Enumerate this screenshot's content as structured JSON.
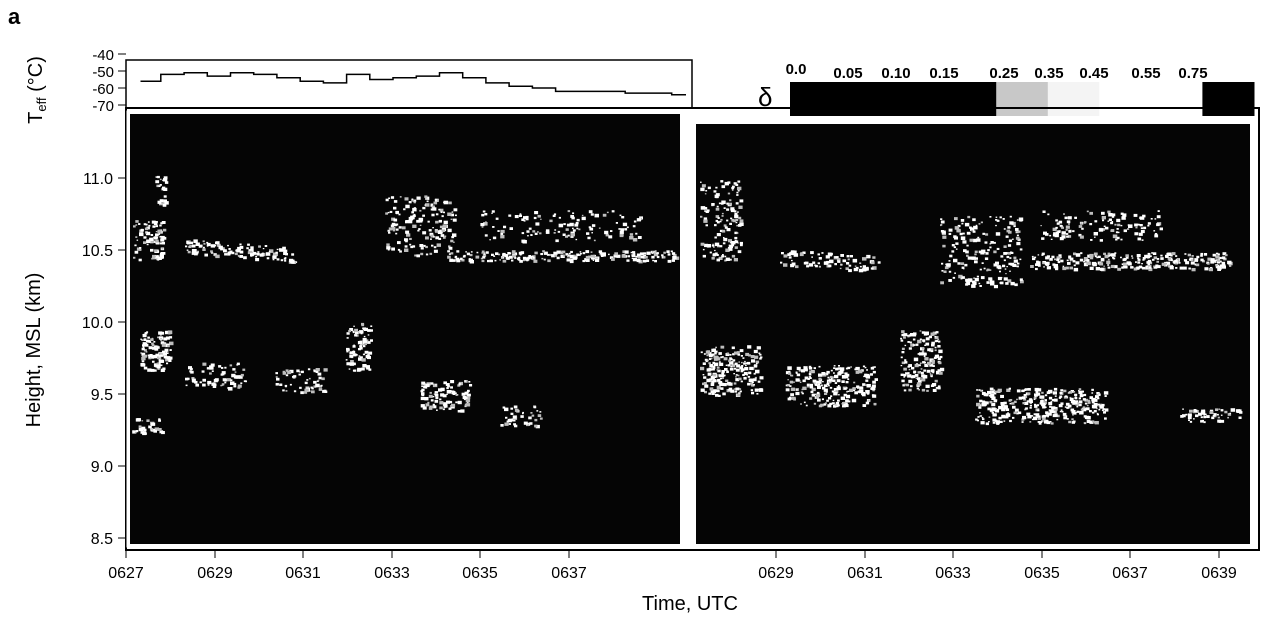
{
  "panel_label": "a",
  "chart_data": [
    {
      "type": "line",
      "ylabel": "T_eff (°C)",
      "ylabel_main": "T",
      "ylabel_sub": "eff",
      "ylabel_unit": " (°C)",
      "yticks": [
        "-40",
        "-50",
        "-60",
        "-70"
      ],
      "ylim": [
        -70,
        -40
      ],
      "xlim": [
        6.45,
        6.645
      ],
      "series": [
        {
          "x": [
            6.455,
            6.462,
            6.47,
            6.478,
            6.486,
            6.494,
            6.502,
            6.51,
            6.518,
            6.526,
            6.534,
            6.542,
            6.55,
            6.558,
            6.566,
            6.574,
            6.582,
            6.59,
            6.598,
            6.606,
            6.614,
            6.622,
            6.63,
            6.638
          ],
          "y": [
            -56,
            -52,
            -51,
            -53,
            -51,
            -52,
            -54,
            -56,
            -57,
            -52,
            -55,
            -54,
            -53,
            -51,
            -54,
            -57,
            -59,
            -60,
            -62,
            -62,
            -62,
            -63,
            -63,
            -64
          ]
        }
      ]
    },
    {
      "type": "heatmap",
      "title": "",
      "xlabel": "Time, UTC",
      "ylabel": "Height, MSL  (km)",
      "xticks": [
        "0627",
        "0629",
        "0631",
        "0633",
        "0635",
        "0637"
      ],
      "yticks": [
        "8.5",
        "9.0",
        "9.5",
        "10.0",
        "10.5",
        "11.0"
      ],
      "xlim": [
        "0627",
        "0639"
      ],
      "ylim": [
        8.5,
        11.5
      ]
    },
    {
      "type": "heatmap",
      "xticks": [
        "0629",
        "0631",
        "0633",
        "0635",
        "0637",
        "0639"
      ],
      "ylim": [
        8.5,
        11.5
      ],
      "colorbar": {
        "symbol": "δ",
        "ticks": [
          "0.0",
          "0.05",
          "0.10",
          "0.15",
          "0.25",
          "0.35",
          "0.45",
          "0.55",
          "0.75"
        ],
        "shades": [
          "#000000",
          "#000000",
          "#000000",
          "#000000",
          "#c8c8c8",
          "#f4f4f4",
          "#ffffff",
          "#ffffff",
          "#000000"
        ]
      }
    }
  ]
}
